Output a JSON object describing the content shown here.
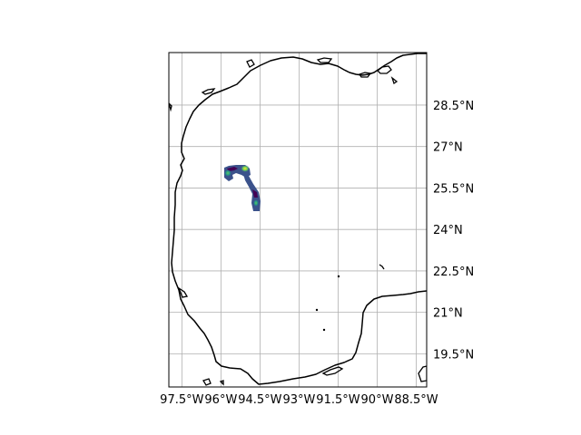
{
  "map": {
    "extent": {
      "lon_min": -98.0,
      "lon_max": -88.1,
      "lat_min": 18.3,
      "lat_max": 30.4
    },
    "longitude_ticks": [
      {
        "value": -97.5,
        "label": "97.5°W"
      },
      {
        "value": -96.0,
        "label": "96°W"
      },
      {
        "value": -94.5,
        "label": "94.5°W"
      },
      {
        "value": -93.0,
        "label": "93°W"
      },
      {
        "value": -91.5,
        "label": "91.5°W"
      },
      {
        "value": -90.0,
        "label": "90°W"
      },
      {
        "value": -88.5,
        "label": "88.5°W"
      }
    ],
    "latitude_ticks": [
      {
        "value": 19.5,
        "label": "19.5°N"
      },
      {
        "value": 21.0,
        "label": "21°N"
      },
      {
        "value": 22.5,
        "label": "22.5°N"
      },
      {
        "value": 24.0,
        "label": "24°N"
      },
      {
        "value": 25.5,
        "label": "25.5°N"
      },
      {
        "value": 27.0,
        "label": "27°N"
      },
      {
        "value": 28.5,
        "label": "28.5°N"
      }
    ],
    "gridlines": true,
    "colormap": [
      "#440154",
      "#3b528b",
      "#21918c",
      "#5ec962",
      "#fde725"
    ],
    "colors": {
      "land_outline": "#000000",
      "grid": "#b0b0b0",
      "frame": "#000000",
      "background": "#ffffff"
    }
  }
}
